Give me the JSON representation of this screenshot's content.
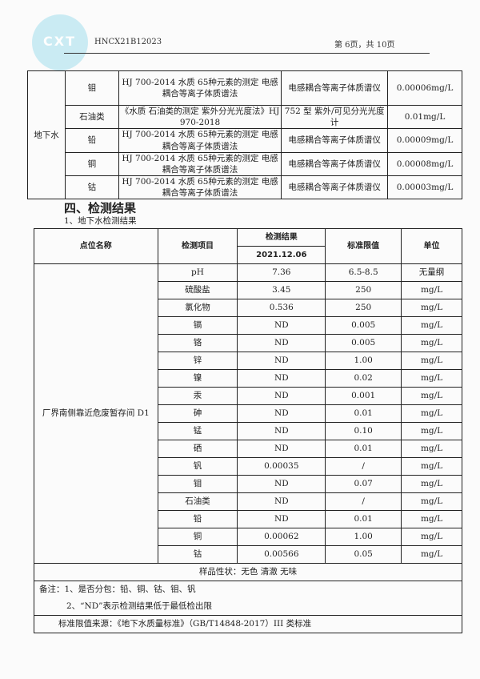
{
  "header": {
    "logo_text": "CXT",
    "report_no": "HNCX21B12023",
    "page": "第 6页，共 10页"
  },
  "method_table": {
    "group": "地下水",
    "rows": [
      {
        "item": "钼",
        "method": "HJ 700-2014 水质 65种元素的测定 电感耦合等离子体质谱法",
        "instrument": "电感耦合等离子体质谱仪",
        "limit": "0.00006mg/L"
      },
      {
        "item": "石油类",
        "method": "《水质 石油类的测定 紫外分光光度法》HJ 970-2018",
        "instrument": "752 型 紫外/可见分光光度计",
        "limit": "0.01mg/L"
      },
      {
        "item": "铅",
        "method": "HJ 700-2014 水质 65种元素的测定 电感耦合等离子体质谱法",
        "instrument": "电感耦合等离子体质谱仪",
        "limit": "0.00009mg/L"
      },
      {
        "item": "铜",
        "method": "HJ 700-2014 水质 65种元素的测定 电感耦合等离子体质谱法",
        "instrument": "电感耦合等离子体质谱仪",
        "limit": "0.00008mg/L"
      },
      {
        "item": "钴",
        "method": "HJ 700-2014 水质 65种元素的测定 电感耦合等离子体质谱法",
        "instrument": "电感耦合等离子体质谱仪",
        "limit": "0.00003mg/L"
      }
    ]
  },
  "section_title": "四、检测结果",
  "subsection_title": "1、地下水检测结果",
  "results": {
    "headers": {
      "site": "点位名称",
      "item": "检测项目",
      "result": "检测结果",
      "date": "2021.12.06",
      "standard": "标准限值",
      "unit": "单位"
    },
    "site": "厂界南侧靠近危废暂存间 D1",
    "rows": [
      {
        "item": "pH",
        "value": "7.36",
        "standard": "6.5-8.5",
        "unit": "无量纲"
      },
      {
        "item": "硫酸盐",
        "value": "3.45",
        "standard": "250",
        "unit": "mg/L"
      },
      {
        "item": "氯化物",
        "value": "0.536",
        "standard": "250",
        "unit": "mg/L"
      },
      {
        "item": "镉",
        "value": "ND",
        "standard": "0.005",
        "unit": "mg/L"
      },
      {
        "item": "铬",
        "value": "ND",
        "standard": "0.005",
        "unit": "mg/L"
      },
      {
        "item": "锌",
        "value": "ND",
        "standard": "1.00",
        "unit": "mg/L"
      },
      {
        "item": "镍",
        "value": "ND",
        "standard": "0.02",
        "unit": "mg/L"
      },
      {
        "item": "汞",
        "value": "ND",
        "standard": "0.001",
        "unit": "mg/L"
      },
      {
        "item": "砷",
        "value": "ND",
        "standard": "0.01",
        "unit": "mg/L"
      },
      {
        "item": "锰",
        "value": "ND",
        "standard": "0.10",
        "unit": "mg/L"
      },
      {
        "item": "硒",
        "value": "ND",
        "standard": "0.01",
        "unit": "mg/L"
      },
      {
        "item": "钒",
        "value": "0.00035",
        "standard": "/",
        "unit": "mg/L"
      },
      {
        "item": "钼",
        "value": "ND",
        "standard": "0.07",
        "unit": "mg/L"
      },
      {
        "item": "石油类",
        "value": "ND",
        "standard": "/",
        "unit": "mg/L"
      },
      {
        "item": "铅",
        "value": "ND",
        "standard": "0.01",
        "unit": "mg/L"
      },
      {
        "item": "铜",
        "value": "0.00062",
        "standard": "1.00",
        "unit": "mg/L"
      },
      {
        "item": "钴",
        "value": "0.00566",
        "standard": "0.05",
        "unit": "mg/L"
      }
    ],
    "sample": "样品性状：无色 清澈 无味",
    "note1": "备注：1、是否分包：铅、铜、钴、钼、钒",
    "note2": "2、“ND”表示检测结果低于最低检出限",
    "source": "标准限值来源：《地下水质量标准》（GB/T14848-2017）III 类标准"
  }
}
